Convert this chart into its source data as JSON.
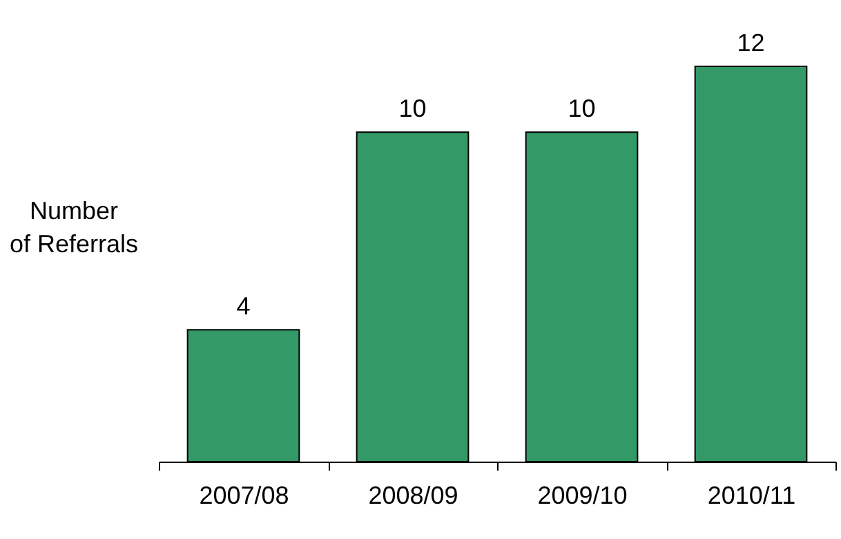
{
  "chart_data": {
    "type": "bar",
    "ylabel": "Number\nof Referrals",
    "categories": [
      "2007/08",
      "2008/09",
      "2009/10",
      "2010/11"
    ],
    "values": [
      4,
      10,
      10,
      12
    ],
    "color": "#339966",
    "data_labels": true,
    "grid": false
  }
}
